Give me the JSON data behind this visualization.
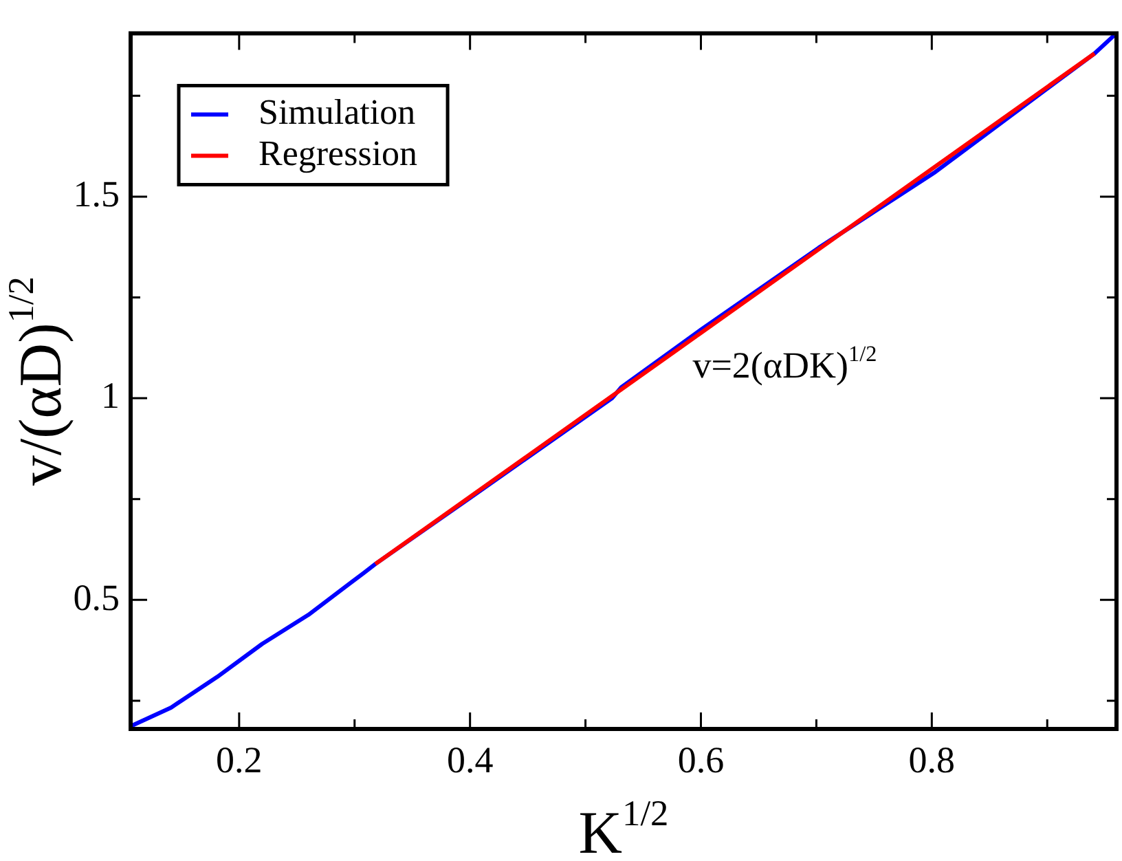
{
  "chart_data": {
    "type": "line",
    "xlabel": "K$^{1/2}$",
    "ylabel": "v/(αD)$^{1/2}$",
    "xlim": [
      0.106,
      0.96
    ],
    "ylim": [
      0.18,
      1.905
    ],
    "xticks": [
      0.2,
      {
        "value": 0.3,
        "label": null
      },
      0.4,
      {
        "value": 0.5,
        "label": null
      },
      0.6,
      {
        "value": 0.7,
        "label": null
      },
      0.8,
      {
        "value": 0.9,
        "label": null
      }
    ],
    "yticks": [
      {
        "value": 0.25,
        "label": null
      },
      0.5,
      {
        "value": 0.75,
        "label": null
      },
      1,
      {
        "value": 1.25,
        "label": null
      },
      1.5,
      {
        "value": 1.75,
        "label": null
      }
    ],
    "series": [
      {
        "name": "Simulation",
        "color": "#0000ff",
        "x": [
          0.107,
          0.141,
          0.181,
          0.22,
          0.26,
          0.308,
          0.318,
          0.4,
          0.523,
          0.531,
          0.6,
          0.702,
          0.802,
          0.941,
          0.958
        ],
        "values": [
          0.188,
          0.233,
          0.309,
          0.391,
          0.463,
          0.567,
          0.589,
          0.753,
          1.0,
          1.027,
          1.17,
          1.373,
          1.559,
          1.855,
          1.9
        ]
      },
      {
        "name": "Regression",
        "color": "#ff0000",
        "x": [
          0.318,
          0.941
        ],
        "values": [
          0.589,
          1.855
        ]
      }
    ],
    "annotations": [
      "v=2(αDK)$^{1/2}$"
    ],
    "legend": "top left",
    "marker": "none",
    "line_style": "solid",
    "grid": false
  }
}
